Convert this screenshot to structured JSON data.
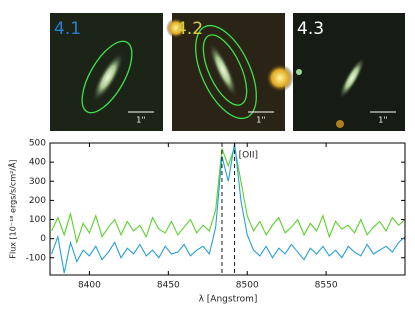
{
  "panels": [
    {
      "label": "4.1",
      "label_color": "#2a7fd0",
      "scale_label": "1''"
    },
    {
      "label": "4.2",
      "label_color": "#d8d040",
      "scale_label": "1''"
    },
    {
      "label": "4.3",
      "label_color": "#ffffff",
      "scale_label": "1''"
    }
  ],
  "chart_data": {
    "type": "line",
    "ylabel": "Flux [10⁻¹⁸ ergs/s/cm²/Å]",
    "xlabel": "λ [Angstrom]",
    "annotation": "[OII]",
    "vlines": [
      8484,
      8492
    ],
    "x": [
      8376,
      8380,
      8384,
      8388,
      8392,
      8396,
      8400,
      8404,
      8408,
      8412,
      8416,
      8420,
      8424,
      8428,
      8432,
      8436,
      8440,
      8444,
      8448,
      8452,
      8456,
      8460,
      8464,
      8468,
      8472,
      8476,
      8480,
      8484,
      8488,
      8492,
      8496,
      8500,
      8504,
      8508,
      8512,
      8516,
      8520,
      8524,
      8528,
      8532,
      8536,
      8540,
      8544,
      8548,
      8552,
      8556,
      8560,
      8564,
      8568,
      8572,
      8576,
      8580,
      8584,
      8588,
      8592,
      8596,
      8600
    ],
    "series": [
      {
        "color": "#5ccf2e",
        "values": [
          40,
          110,
          20,
          130,
          -20,
          80,
          30,
          120,
          10,
          60,
          100,
          20,
          90,
          40,
          70,
          10,
          110,
          50,
          30,
          90,
          20,
          60,
          100,
          30,
          70,
          40,
          150,
          470,
          380,
          480,
          300,
          120,
          40,
          90,
          20,
          70,
          110,
          30,
          60,
          100,
          20,
          80,
          40,
          120,
          10,
          90,
          50,
          70,
          30,
          100,
          20,
          60,
          90,
          40,
          110,
          70,
          100
        ]
      },
      {
        "color": "#2a9fd8",
        "values": [
          -80,
          10,
          -180,
          -20,
          -120,
          -60,
          -90,
          -40,
          -110,
          -70,
          -20,
          -100,
          -50,
          -80,
          -30,
          -90,
          -60,
          -100,
          -40,
          -80,
          -70,
          -30,
          -90,
          -60,
          -40,
          -80,
          60,
          430,
          300,
          500,
          200,
          20,
          -60,
          -90,
          -40,
          -100,
          -50,
          -80,
          -30,
          -70,
          -110,
          -50,
          -80,
          -40,
          -90,
          -60,
          -100,
          -40,
          -70,
          -90,
          -30,
          -80,
          -60,
          -40,
          -70,
          -20,
          10
        ]
      }
    ],
    "xlim": [
      8375,
      8600
    ],
    "ylim": [
      -190,
      500
    ],
    "xticks": [
      8400,
      8450,
      8500,
      8550
    ],
    "yticks": [
      -100,
      0,
      100,
      200,
      300,
      400,
      500
    ]
  }
}
